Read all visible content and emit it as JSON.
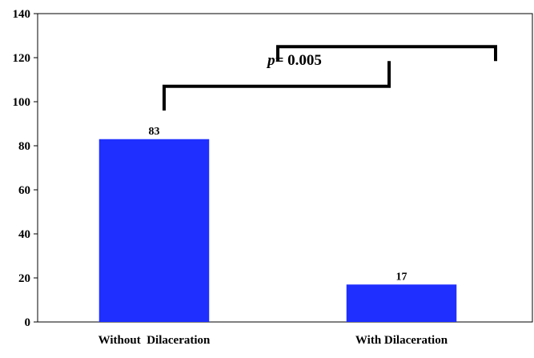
{
  "chart_data": {
    "type": "bar",
    "categories": [
      "Without  Dilaceration",
      "With Dilaceration"
    ],
    "values": [
      83,
      17
    ],
    "data_labels": [
      "83",
      "17"
    ],
    "ylim": [
      0,
      140
    ],
    "yticks": [
      0,
      20,
      40,
      60,
      80,
      100,
      120,
      140
    ],
    "ytick_labels": [
      "0",
      "20",
      "40",
      "60",
      "80",
      "100",
      "120",
      "140"
    ],
    "title": "",
    "xlabel": "",
    "ylabel": "",
    "grid": false,
    "bar_color": "#1f2fff",
    "annotation": {
      "text_italic": "p",
      "text_rest": "= 0.005",
      "bracket_top_y": 107,
      "bracket_lower_y": 125,
      "bracket_left_drop_to": 96
    }
  }
}
